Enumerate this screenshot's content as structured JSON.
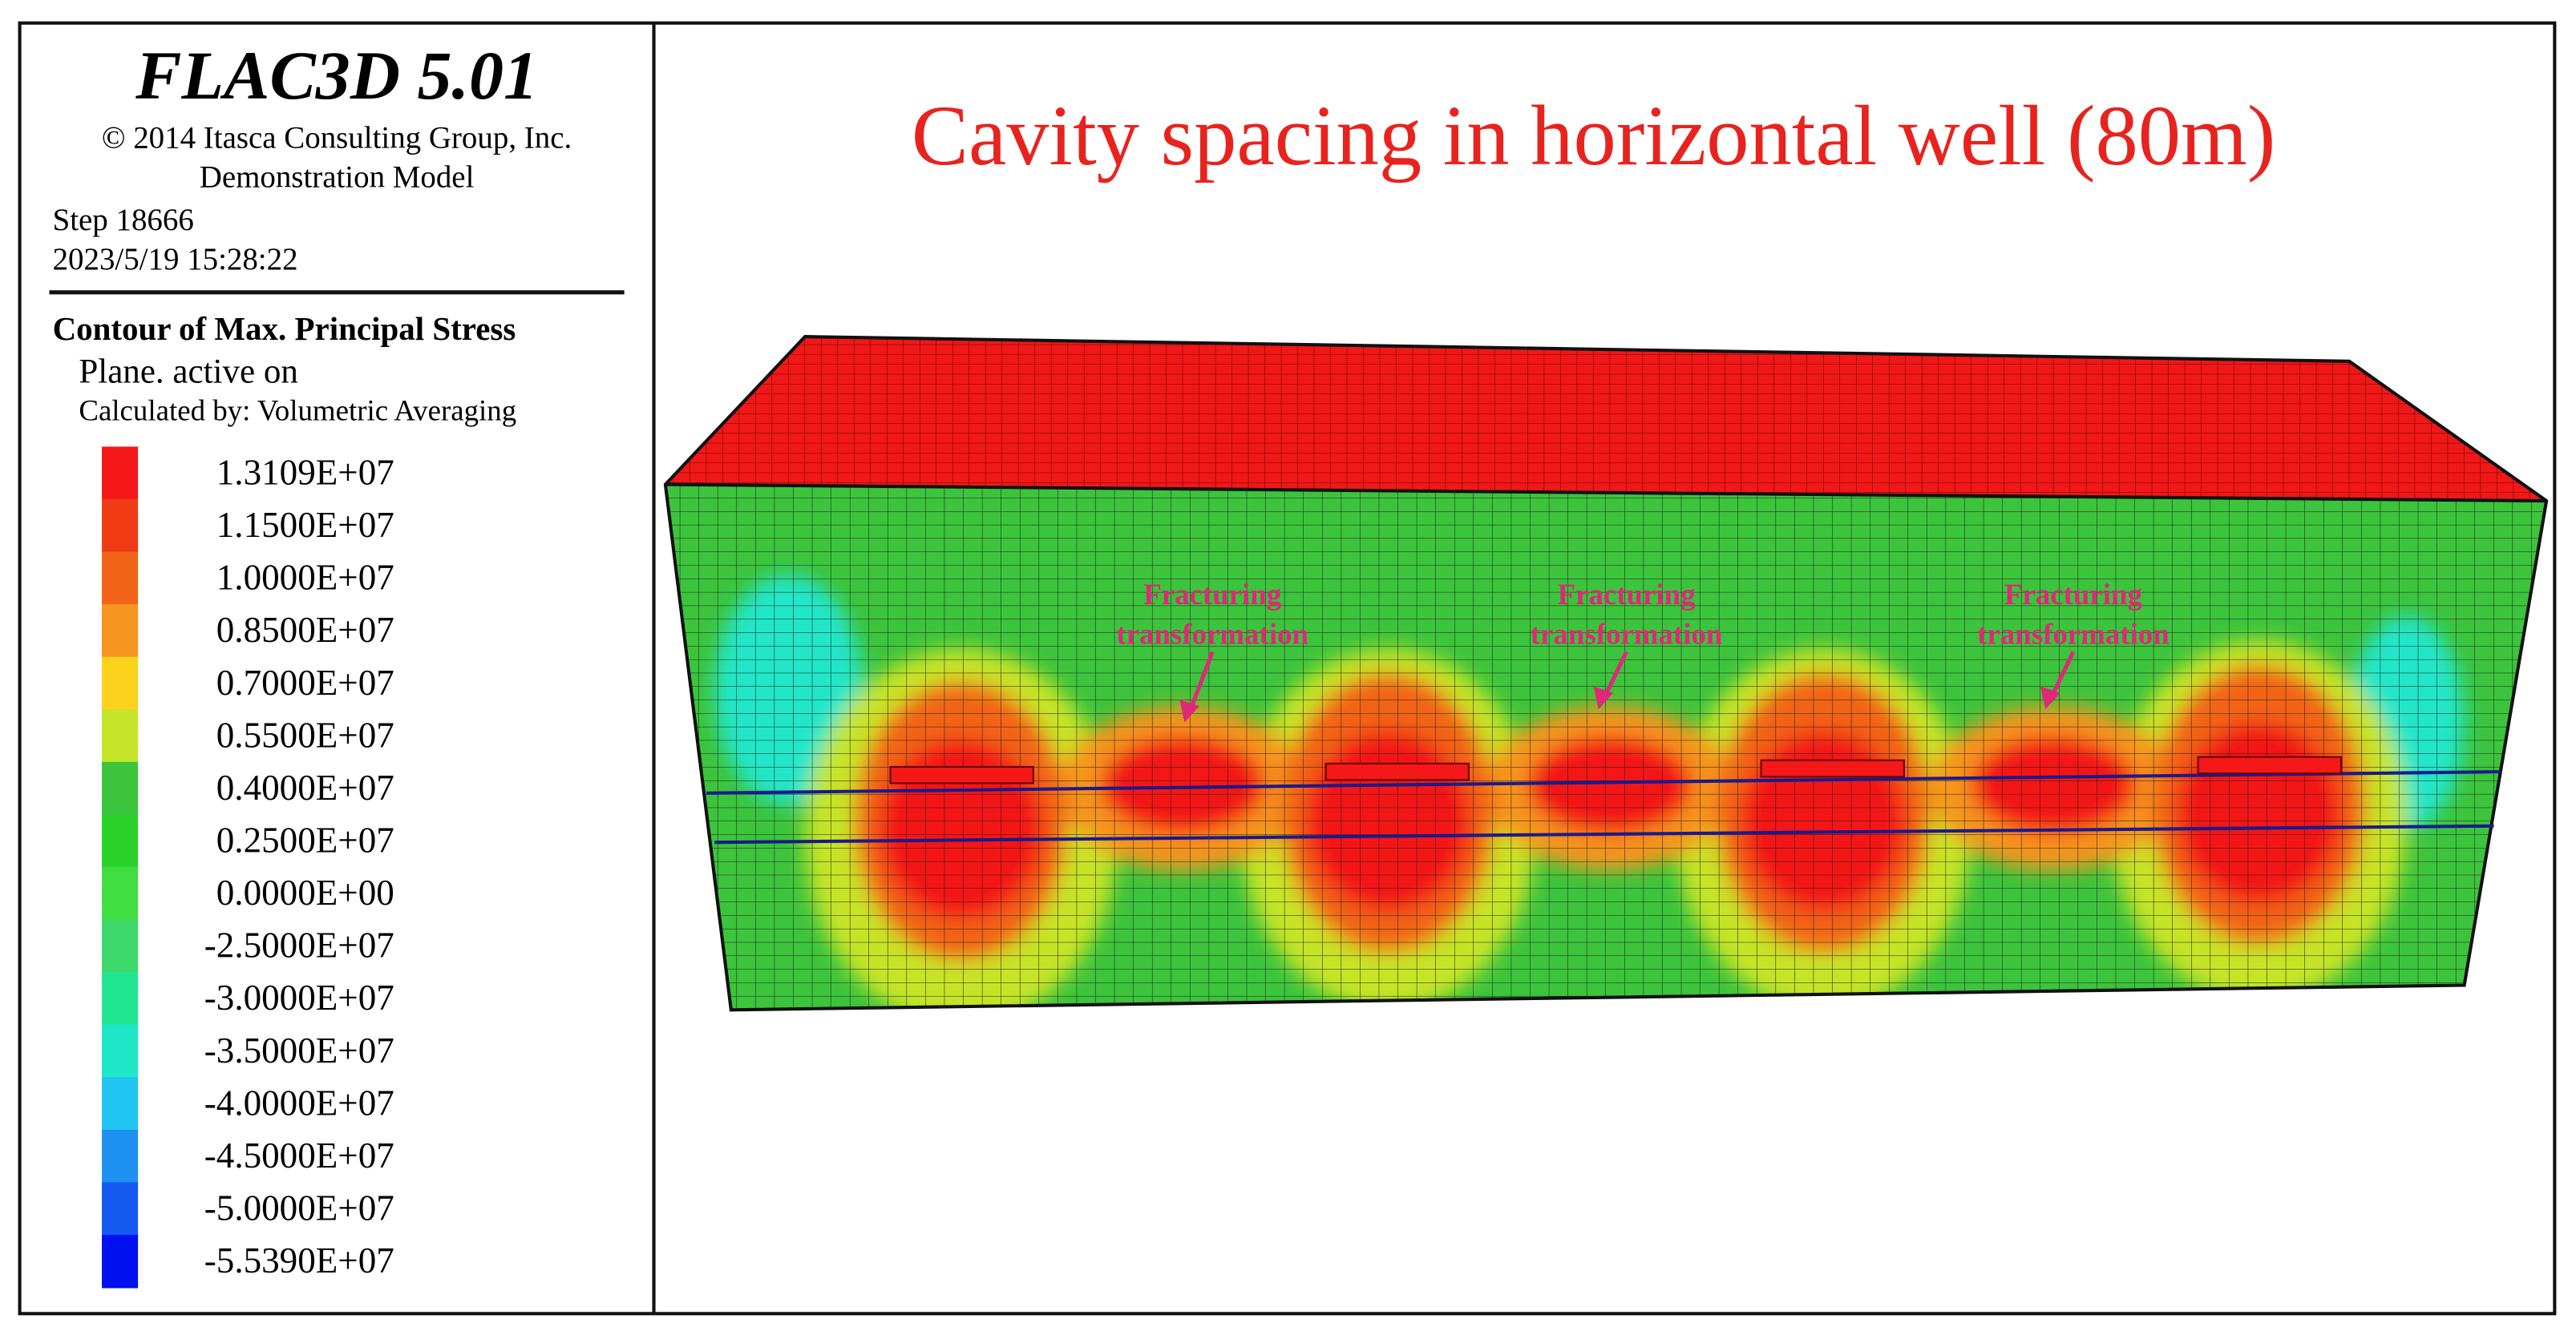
{
  "header": {
    "title": "FLAC3D  5.01",
    "copyright": "© 2014 Itasca Consulting Group, Inc.",
    "model": "Demonstration Model",
    "step": "Step  18666",
    "date": "2023/5/19 15:28:22"
  },
  "contour": {
    "title": "Contour of Max. Principal Stress",
    "plane": "Plane. active on",
    "method": "Calculated by: Volumetric Averaging",
    "legend": [
      {
        "label": "1.3109E+07",
        "color": "#f41818"
      },
      {
        "label": "1.1500E+07",
        "color": "#f03c14"
      },
      {
        "label": "1.0000E+07",
        "color": "#f26418"
      },
      {
        "label": "0.8500E+07",
        "color": "#f5941e"
      },
      {
        "label": "0.7000E+07",
        "color": "#fcd21c"
      },
      {
        "label": "0.5500E+07",
        "color": "#c6e428"
      },
      {
        "label": "0.4000E+07",
        "color": "#3cc43c"
      },
      {
        "label": "0.2500E+07",
        "color": "#2ad22a"
      },
      {
        "label": "0.0000E+00",
        "color": "#40de40"
      },
      {
        "label": "-2.5000E+07",
        "color": "#3cd86a"
      },
      {
        "label": "-3.0000E+07",
        "color": "#20e692"
      },
      {
        "label": "-3.5000E+07",
        "color": "#20e6c8"
      },
      {
        "label": "-4.0000E+07",
        "color": "#20c4f0"
      },
      {
        "label": "-4.5000E+07",
        "color": "#1e90f0"
      },
      {
        "label": "-5.0000E+07",
        "color": "#145af0"
      },
      {
        "label": "-5.5390E+07",
        "color": "#0010f0"
      }
    ]
  },
  "figure": {
    "title": "Cavity spacing in horizontal well (80m)",
    "annotations": [
      {
        "lines": [
          "Fracturing",
          "transformation"
        ]
      },
      {
        "lines": [
          "Fracturing",
          "transformation"
        ]
      },
      {
        "lines": [
          "Fracturing",
          "transformation"
        ]
      }
    ]
  }
}
